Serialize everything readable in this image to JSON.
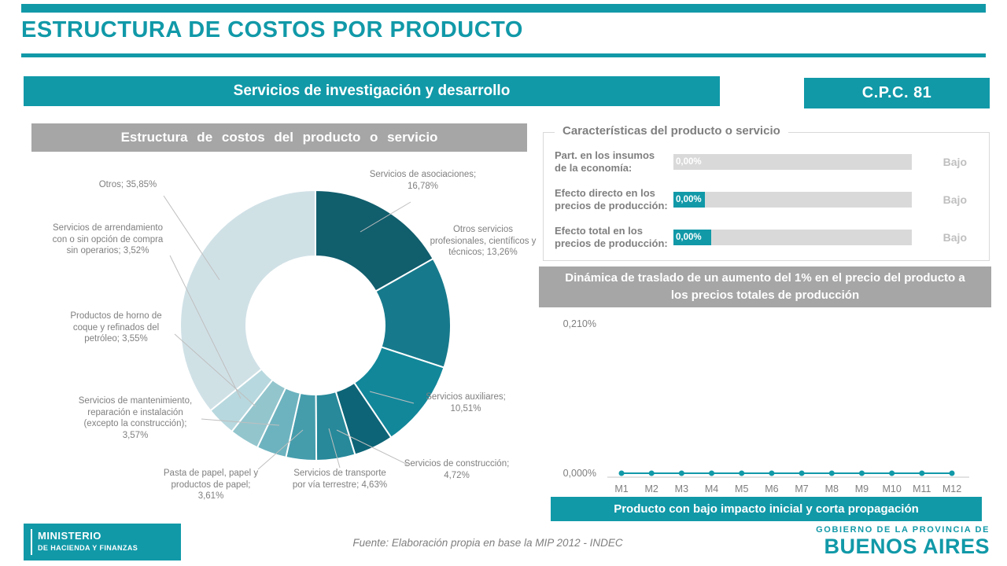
{
  "page": {
    "title": "ESTRUCTURA DE COSTOS POR PRODUCTO",
    "product_banner": "Servicios de investigación y desarrollo",
    "cpc_badge": "C.P.C. 81"
  },
  "cost_structure": {
    "title": "Estructura de costos del producto o servicio"
  },
  "characteristics": {
    "title": "Características del producto o servicio",
    "rows": [
      {
        "label": "Part. en los insumos de la economía:",
        "value": "0,00%",
        "rating": "Bajo"
      },
      {
        "label": "Efecto directo en los precios de producción:",
        "value": "0,00%",
        "rating": "Bajo"
      },
      {
        "label": "Efecto total en los precios de producción:",
        "value": "0,00%",
        "rating": "Bajo"
      }
    ]
  },
  "dynamics": {
    "title": "Dinámica de traslado de un aumento del 1% en el precio del producto a los precios totales de producción",
    "conclusion_banner": "Producto con bajo impacto inicial y corta propagación"
  },
  "footer": {
    "ministry_line1": "MINISTERIO",
    "ministry_line2": "DE HACIENDA Y FINANZAS",
    "source": "Fuente: Elaboración propia en base la MIP 2012 - INDEC",
    "government_line1": "GOBIERNO DE LA PROVINCIA DE",
    "government_line2": "BUENOS AIRES"
  },
  "colors": {
    "teal": "#1199a8",
    "banner_gray": "#a6a6a6",
    "text_gray": "#7f7f7f",
    "rating_gray": "#bfbfbf",
    "bar_gray": "#d9d9d9"
  },
  "chart_data": [
    {
      "type": "pie",
      "donut": true,
      "title": "Estructura de costos del producto o servicio",
      "labels": [
        "Servicios de asociaciones",
        "Otros servicios profesionales, científicos y técnicos",
        "Servicios auxiliares",
        "Servicios de construcción",
        "Servicios de transporte por vía terrestre",
        "Pasta de papel, papel y productos de papel",
        "Servicios de mantenimiento, reparación e instalación (excepto la construcción)",
        "Productos de horno de coque y refinados del petróleo",
        "Servicios de arrendamiento con o sin opción de compra sin operarios",
        "Otros"
      ],
      "values": [
        16.78,
        13.26,
        10.51,
        4.72,
        4.63,
        3.61,
        3.57,
        3.55,
        3.52,
        35.85
      ],
      "unit": "%",
      "colors": [
        "#115e6d",
        "#177a8c",
        "#12879a",
        "#0d6476",
        "#27899a",
        "#459dac",
        "#6db3bf",
        "#93c5cd",
        "#b7d8de",
        "#d0e1e6"
      ]
    },
    {
      "type": "line",
      "title": "Dinámica de traslado de un aumento del 1% en el precio del producto a los precios totales de producción",
      "x": [
        "M1",
        "M2",
        "M3",
        "M4",
        "M5",
        "M6",
        "M7",
        "M8",
        "M9",
        "M10",
        "M11",
        "M12"
      ],
      "values": [
        0,
        0,
        0,
        0,
        0,
        0,
        0,
        0,
        0,
        0,
        0,
        0
      ],
      "ylim": [
        0,
        0.21
      ],
      "ytick_labels": [
        "0,000%",
        "0,210%"
      ],
      "grid": false,
      "legend": false,
      "line_color": "#1199a8"
    }
  ]
}
